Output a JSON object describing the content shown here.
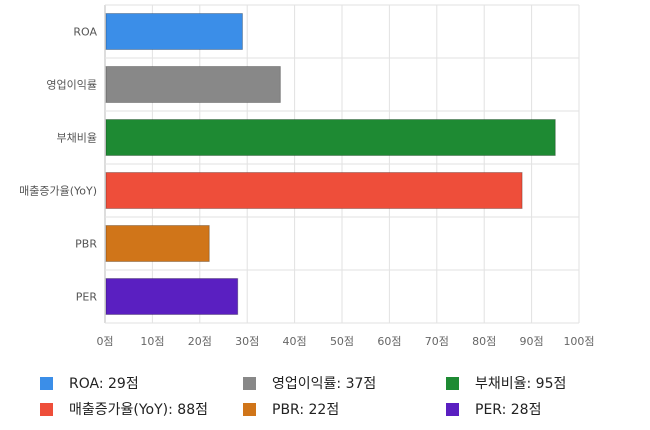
{
  "chart_data": {
    "type": "bar",
    "orientation": "horizontal",
    "categories": [
      "ROA",
      "영업이익률",
      "부채비율",
      "매출증가율(YoY)",
      "PBR",
      "PER"
    ],
    "values": [
      29,
      37,
      95,
      88,
      22,
      28
    ],
    "colors": [
      "#3b8ee8",
      "#888888",
      "#1e8a33",
      "#ee4e3a",
      "#d07519",
      "#5a1fc1"
    ],
    "tick_unit": "점",
    "xlim": [
      0,
      100
    ],
    "x_ticks": [
      "0점",
      "10점",
      "20점",
      "30점",
      "40점",
      "50점",
      "60점",
      "70점",
      "80점",
      "90점",
      "100점"
    ],
    "grid": true,
    "legend": {
      "placement": "bottom",
      "entries": [
        "ROA: 29점",
        "영업이익률: 37점",
        "부채비율: 95점",
        "매출증가율(YoY): 88점",
        "PBR: 22점",
        "PER: 28점"
      ]
    }
  }
}
